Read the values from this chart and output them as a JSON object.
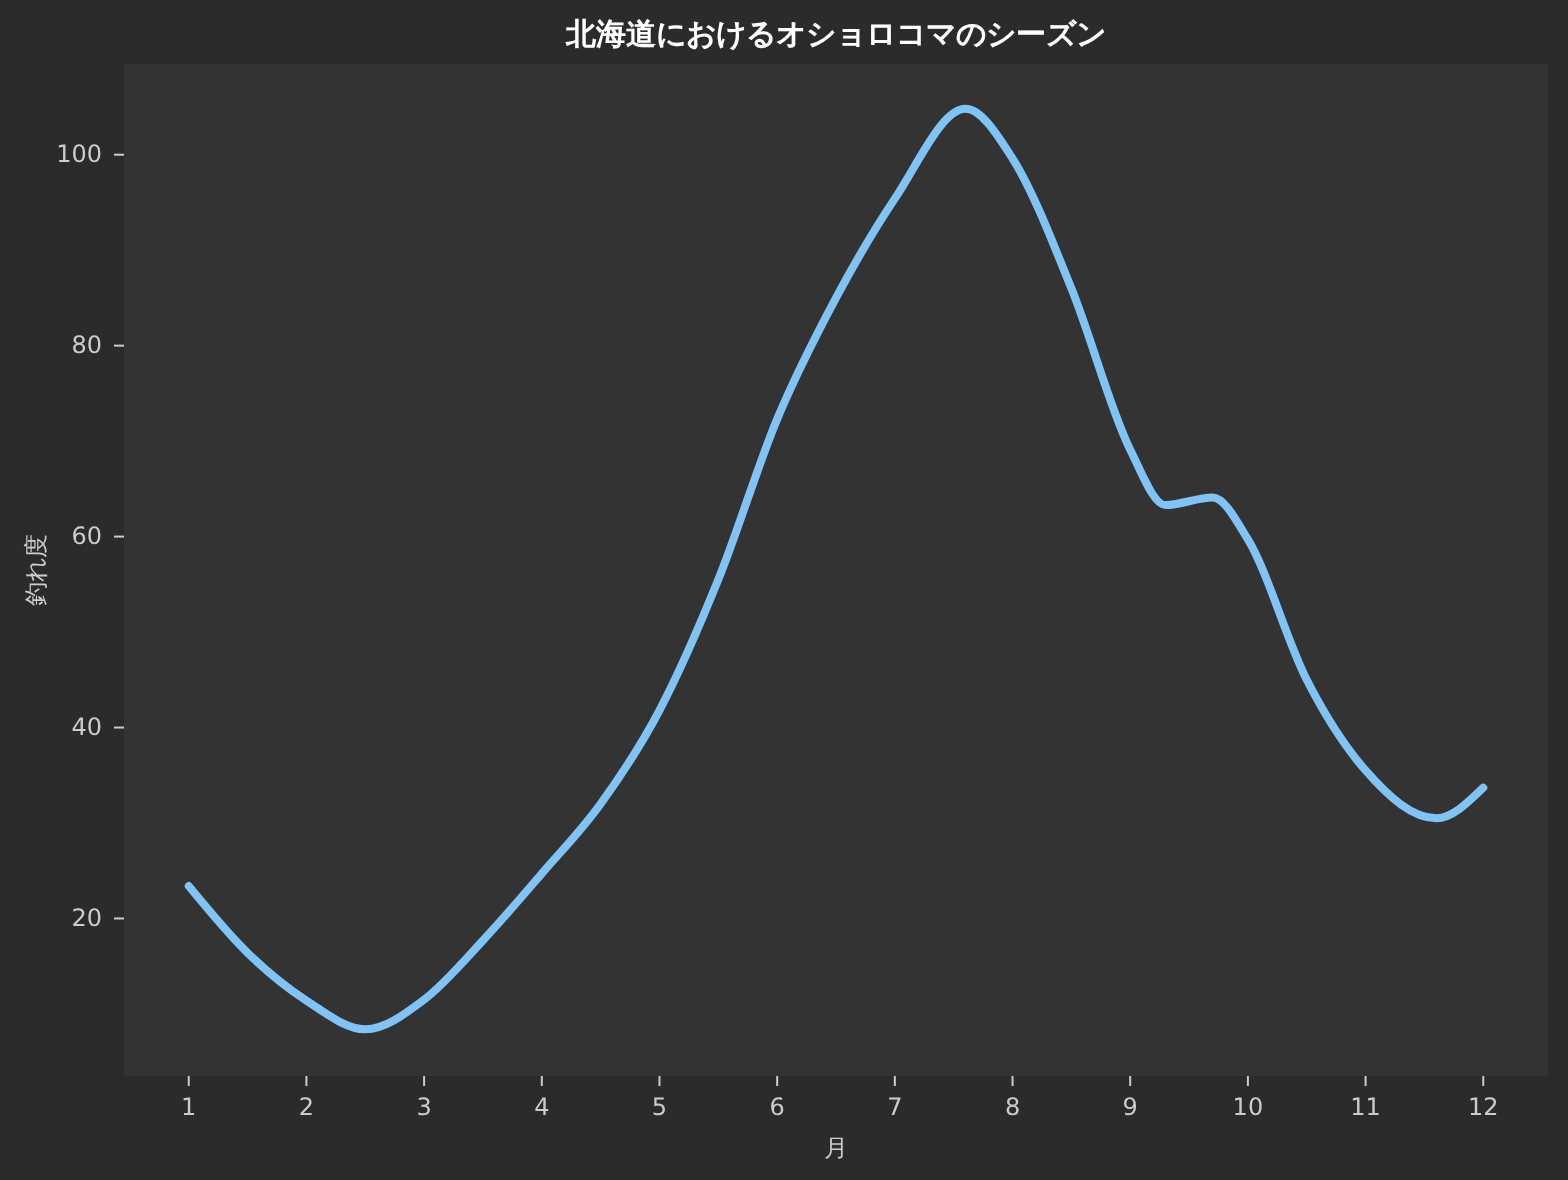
{
  "chart_data": {
    "type": "line",
    "title": "北海道におけるオショロコマのシーズン",
    "xlabel": "月",
    "ylabel": "釣れ度",
    "xlim": [
      0.45,
      12.55
    ],
    "xticks": [
      1,
      2,
      3,
      4,
      5,
      6,
      7,
      8,
      9,
      10,
      11,
      12
    ],
    "ylim": [
      3.5,
      109.5
    ],
    "yticks": [
      20,
      40,
      60,
      80,
      100
    ],
    "grid": false,
    "marker": "none",
    "line_style": "solid",
    "series": [
      {
        "color": "#7fc4f4",
        "x": [
          1,
          1.5,
          2,
          2.5,
          3,
          3.5,
          4,
          4.5,
          5,
          5.5,
          6,
          6.5,
          7,
          7.6,
          8,
          8.5,
          9,
          9.3,
          9.7,
          10,
          10.5,
          11,
          11.6,
          12
        ],
        "values": [
          23.4,
          16.4,
          11.4,
          8.4,
          11.5,
          17.7,
          24.7,
          32,
          41.8,
          55.5,
          72.3,
          85,
          95.4,
          104.8,
          99.6,
          86,
          69.1,
          63.3,
          64.1,
          59.7,
          45,
          35.5,
          30.5,
          33.7
        ]
      }
    ]
  }
}
